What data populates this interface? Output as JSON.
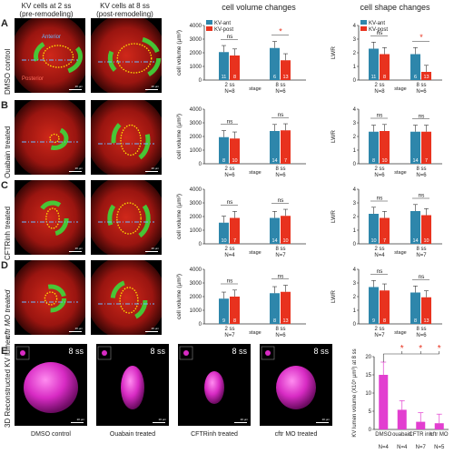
{
  "header": {
    "col1": "KV cells at 2 ss",
    "col1b": "(pre-remodeling)",
    "col2": "KV cells at 8 ss",
    "col2b": "(post-remodeling)",
    "volume_title": "cell volume changes",
    "shape_title": "cell shape changes"
  },
  "panels": {
    "A": "A",
    "B": "B",
    "C": "C",
    "D": "D",
    "E": "E"
  },
  "rows": {
    "A": "DMSO control",
    "B": "Ouabain treated",
    "C": "CFTRinh treated",
    "D": "cftr MO treated",
    "E": "3D Reconstructed KV lumen"
  },
  "micro": {
    "anterior": "Anterior",
    "posterior": "Posterior",
    "scale": "20 µm"
  },
  "legend": {
    "ant": "KV-ant",
    "post": "KV-post",
    "ant_color": "#2e86ab",
    "post_color": "#e8321e"
  },
  "axes": {
    "volume_ylabel": "cell volume (µm³)",
    "shape_ylabel": "LWR",
    "stage": "stage",
    "stage2": "2 ss",
    "stage8": "8 ss"
  },
  "chart_data": [
    {
      "type": "bar",
      "panel": "A",
      "metric": "cell volume",
      "ylim": [
        0,
        4000
      ],
      "ticks": [
        0,
        1000,
        2000,
        3000,
        4000
      ],
      "categories": [
        "2 ss",
        "8 ss"
      ],
      "series": [
        {
          "name": "KV-ant",
          "values": [
            2050,
            2350
          ],
          "n": [
            11,
            6
          ]
        },
        {
          "name": "KV-post",
          "values": [
            1800,
            1450
          ],
          "n": [
            8,
            13
          ]
        }
      ],
      "N": [
        "N=8",
        "N=6"
      ],
      "sig": [
        "ns",
        "*"
      ]
    },
    {
      "type": "bar",
      "panel": "A",
      "metric": "LWR",
      "ylim": [
        0,
        4
      ],
      "ticks": [
        0,
        1,
        2,
        3,
        4
      ],
      "categories": [
        "2 ss",
        "8 ss"
      ],
      "series": [
        {
          "name": "KV-ant",
          "values": [
            2.3,
            1.9
          ],
          "n": [
            11,
            6
          ]
        },
        {
          "name": "KV-post",
          "values": [
            1.9,
            0.6
          ],
          "n": [
            8,
            13
          ]
        }
      ],
      "N": [
        "N=8",
        "N=6"
      ],
      "sig": [
        "ns",
        "*"
      ]
    },
    {
      "type": "bar",
      "panel": "B",
      "metric": "cell volume",
      "ylim": [
        0,
        4000
      ],
      "ticks": [
        0,
        1000,
        2000,
        3000,
        4000
      ],
      "categories": [
        "2 ss",
        "8 ss"
      ],
      "series": [
        {
          "name": "KV-ant",
          "values": [
            1950,
            2400
          ],
          "n": [
            8,
            14
          ]
        },
        {
          "name": "KV-post",
          "values": [
            1850,
            2450
          ],
          "n": [
            10,
            7
          ]
        }
      ],
      "N": [
        "N=6",
        "N=6"
      ],
      "sig": [
        "ns",
        "ns"
      ]
    },
    {
      "type": "bar",
      "panel": "B",
      "metric": "LWR",
      "ylim": [
        0,
        4
      ],
      "ticks": [
        0,
        1,
        2,
        3,
        4
      ],
      "categories": [
        "2 ss",
        "8 ss"
      ],
      "series": [
        {
          "name": "KV-ant",
          "values": [
            2.35,
            2.35
          ],
          "n": [
            8,
            14
          ]
        },
        {
          "name": "KV-post",
          "values": [
            2.4,
            2.35
          ],
          "n": [
            10,
            7
          ]
        }
      ],
      "N": [
        "N=6",
        "N=6"
      ],
      "sig": [
        "ns",
        "ns"
      ]
    },
    {
      "type": "bar",
      "panel": "C",
      "metric": "cell volume",
      "ylim": [
        0,
        4000
      ],
      "ticks": [
        0,
        1000,
        2000,
        3000,
        4000
      ],
      "categories": [
        "2 ss",
        "8 ss"
      ],
      "series": [
        {
          "name": "KV-ant",
          "values": [
            1550,
            1900
          ],
          "n": [
            10,
            14
          ]
        },
        {
          "name": "KV-post",
          "values": [
            1900,
            2050
          ],
          "n": [
            7,
            10
          ]
        }
      ],
      "N": [
        "N=4",
        "N=7"
      ],
      "sig": [
        "ns",
        "ns"
      ]
    },
    {
      "type": "bar",
      "panel": "C",
      "metric": "LWR",
      "ylim": [
        0,
        4
      ],
      "ticks": [
        0,
        1,
        2,
        3,
        4
      ],
      "categories": [
        "2 ss",
        "8 ss"
      ],
      "series": [
        {
          "name": "KV-ant",
          "values": [
            2.2,
            2.4
          ],
          "n": [
            10,
            14
          ]
        },
        {
          "name": "KV-post",
          "values": [
            1.9,
            2.1
          ],
          "n": [
            7,
            10
          ]
        }
      ],
      "N": [
        "N=4",
        "N=7"
      ],
      "sig": [
        "ns",
        "ns"
      ]
    },
    {
      "type": "bar",
      "panel": "D",
      "metric": "cell volume",
      "ylim": [
        0,
        4000
      ],
      "ticks": [
        0,
        1000,
        2000,
        3000,
        4000
      ],
      "categories": [
        "2 ss",
        "8 ss"
      ],
      "series": [
        {
          "name": "KV-ant",
          "values": [
            1850,
            2250
          ],
          "n": [
            9,
            8
          ]
        },
        {
          "name": "KV-post",
          "values": [
            2000,
            2350
          ],
          "n": [
            8,
            13
          ]
        }
      ],
      "N": [
        "N=7",
        "N=6"
      ],
      "sig": [
        "ns",
        "ns"
      ]
    },
    {
      "type": "bar",
      "panel": "D",
      "metric": "LWR",
      "ylim": [
        0,
        4
      ],
      "ticks": [
        0,
        1,
        2,
        3,
        4
      ],
      "categories": [
        "2 ss",
        "8 ss"
      ],
      "series": [
        {
          "name": "KV-ant",
          "values": [
            2.7,
            2.3
          ],
          "n": [
            9,
            8
          ]
        },
        {
          "name": "KV-post",
          "values": [
            2.45,
            1.95
          ],
          "n": [
            8,
            13
          ]
        }
      ],
      "N": [
        "N=7",
        "N=6"
      ],
      "sig": [
        "ns",
        "ns"
      ]
    },
    {
      "type": "bar",
      "panel": "E",
      "metric": "KV lumen volume",
      "ylabel": "KV lumen volume (X10⁵ µm³) at 8 ss",
      "ylim": [
        0,
        20
      ],
      "ticks": [
        0,
        5,
        10,
        15,
        20
      ],
      "categories": [
        "DMSO",
        "ouabain",
        "CFTR inh",
        "cftr MO"
      ],
      "values": [
        15,
        5.4,
        2.1,
        1.7
      ],
      "N": [
        "N=4",
        "N=4",
        "N=7",
        "N=5"
      ],
      "sig": [
        "",
        "*",
        "*",
        "*"
      ],
      "color": "#e23fd0"
    }
  ],
  "lumen": {
    "stage": "8 ss",
    "captions": [
      "DMSO control",
      "Ouabain treated",
      "CFTRinh treated",
      "cftr MO treated"
    ]
  }
}
